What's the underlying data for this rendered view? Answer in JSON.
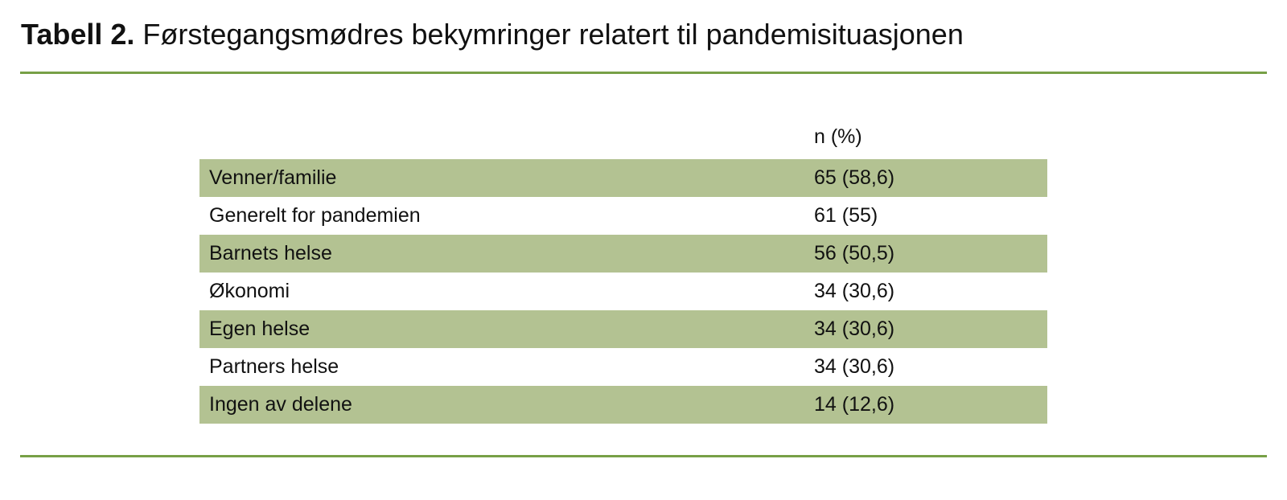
{
  "header": {
    "label": "Tabell 2.",
    "title": "Førstegangsmødres bekymringer relatert til pandemisituasjonen"
  },
  "table": {
    "columns": [
      "",
      "n (%)"
    ],
    "rows": [
      [
        "Venner/familie",
        "65 (58,6)"
      ],
      [
        "Generelt for pandemien",
        "61 (55)"
      ],
      [
        "Barnets helse",
        "56 (50,5)"
      ],
      [
        "Økonomi",
        "34 (30,6)"
      ],
      [
        "Egen helse",
        "34 (30,6)"
      ],
      [
        "Partners helse",
        "34 (30,6)"
      ],
      [
        "Ingen av delene",
        "14 (12,6)"
      ]
    ]
  }
}
